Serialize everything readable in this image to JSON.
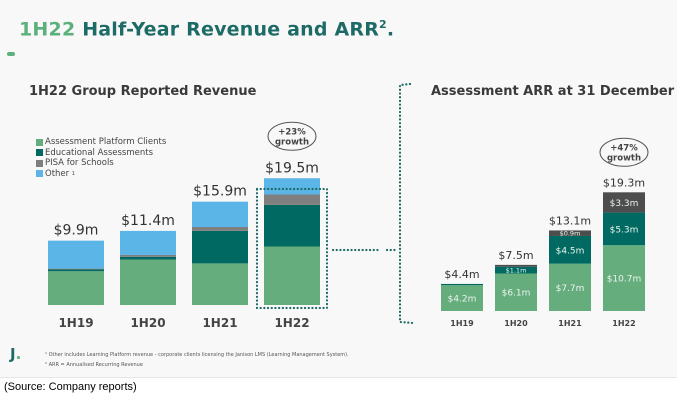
{
  "slide": {
    "title_highlight": "1H22",
    "title_rest": " Half-Year Revenue and ARR",
    "title_sup": "2",
    "title_end": ".",
    "logo_letter": "J",
    "logo_dot": ".",
    "footnotes": [
      "¹ Other includes Learning Platform revenue - corporate clients licensing the Janison LMS (Learning Management System).",
      "² ARR = Annualised Recurring Revenue"
    ],
    "source": "(Source: Company reports)"
  },
  "colors": {
    "title": "#1d6b66",
    "accent_green": "#5cb07c",
    "assessment_platform": "#66ad7e",
    "educational": "#006a62",
    "pisa": "#7f7f7f",
    "pisa_arr": "#4d4d4d",
    "other": "#5bb5e6",
    "connector": "#1d6b66"
  },
  "chart_data": [
    {
      "type": "bar",
      "stacked": true,
      "title": "1H22 Group Reported Revenue",
      "categories": [
        "1H19",
        "1H20",
        "1H21",
        "1H22"
      ],
      "series": [
        {
          "name": "Assessment Platform Clients",
          "values": [
            5.2,
            7.0,
            6.4,
            9.0
          ],
          "color_key": "assessment_platform"
        },
        {
          "name": "Educational Assessments",
          "values": [
            0.3,
            0.4,
            5.0,
            6.4
          ],
          "color_key": "educational"
        },
        {
          "name": "PISA for Schools",
          "values": [
            0.1,
            0.3,
            0.6,
            1.6
          ],
          "color_key": "pisa"
        },
        {
          "name": "Other",
          "values": [
            4.3,
            3.7,
            3.9,
            2.5
          ],
          "color_key": "other",
          "legend_sup": "1"
        }
      ],
      "totals": [
        9.9,
        11.4,
        15.9,
        19.5
      ],
      "total_labels": [
        "$9.9m",
        "$11.4m",
        "$15.9m",
        "$19.5m"
      ],
      "callout": {
        "category": "1H22",
        "lines": [
          "+23%",
          "growth"
        ]
      },
      "highlight_category": "1H22",
      "legend_position": "top-left",
      "xlabel": "",
      "ylabel": "",
      "ylim": [
        0,
        19.5
      ],
      "grid": false,
      "units": "AUD millions"
    },
    {
      "type": "bar",
      "stacked": true,
      "title": "Assessment ARR at 31 December",
      "categories": [
        "1H19",
        "1H20",
        "1H21",
        "1H22"
      ],
      "series": [
        {
          "name": "Assessment Platform Clients",
          "values": [
            4.2,
            6.1,
            7.7,
            10.7
          ],
          "labels": [
            "$4.2m",
            "$6.1m",
            "$7.7m",
            "$10.7m"
          ],
          "color_key": "assessment_platform"
        },
        {
          "name": "Educational Assessments",
          "values": [
            0.2,
            1.1,
            4.5,
            5.3
          ],
          "labels": [
            "",
            "$1.1m",
            "$4.5m",
            "$5.3m"
          ],
          "color_key": "educational"
        },
        {
          "name": "PISA for Schools",
          "values": [
            0.0,
            0.3,
            0.9,
            3.3
          ],
          "labels": [
            "",
            "",
            "$0.9m",
            "$3.3m"
          ],
          "color_key": "pisa_arr"
        }
      ],
      "totals": [
        4.4,
        7.5,
        13.1,
        19.3
      ],
      "total_labels": [
        "$4.4m",
        "$7.5m",
        "$13.1m",
        "$19.3m"
      ],
      "callout": {
        "category": "1H22",
        "lines": [
          "+47%",
          "growth"
        ]
      },
      "xlabel": "",
      "ylabel": "",
      "ylim": [
        0,
        19.3
      ],
      "grid": false,
      "units": "AUD millions"
    }
  ]
}
